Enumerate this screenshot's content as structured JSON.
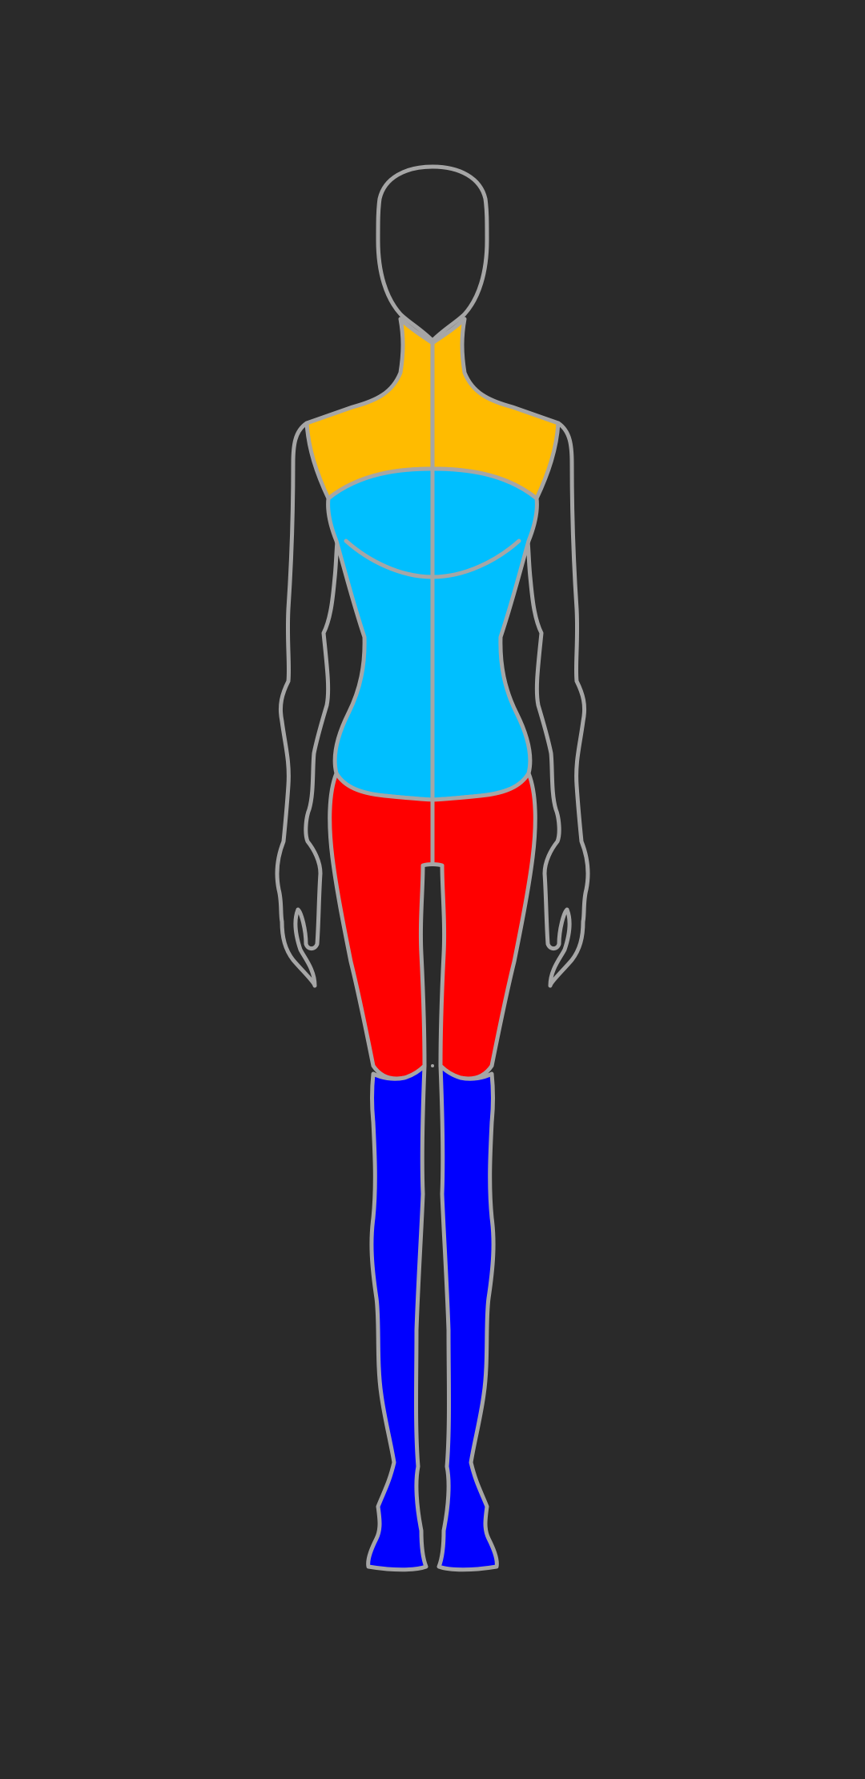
{
  "background_color": "#2a2a2a",
  "outline_color": "#a6a6a6",
  "zones": [
    {
      "name": "shoulders-neck",
      "color": "#ffbb00"
    },
    {
      "name": "chest-torso",
      "color": "#00bfff"
    },
    {
      "name": "hips-thighs",
      "color": "#ff0000"
    },
    {
      "name": "lower-legs-feet",
      "color": "#0000ff"
    }
  ],
  "icons": [
    "mannequin-head-icon",
    "mannequin-arm-icon",
    "mannequin-body-icon"
  ]
}
